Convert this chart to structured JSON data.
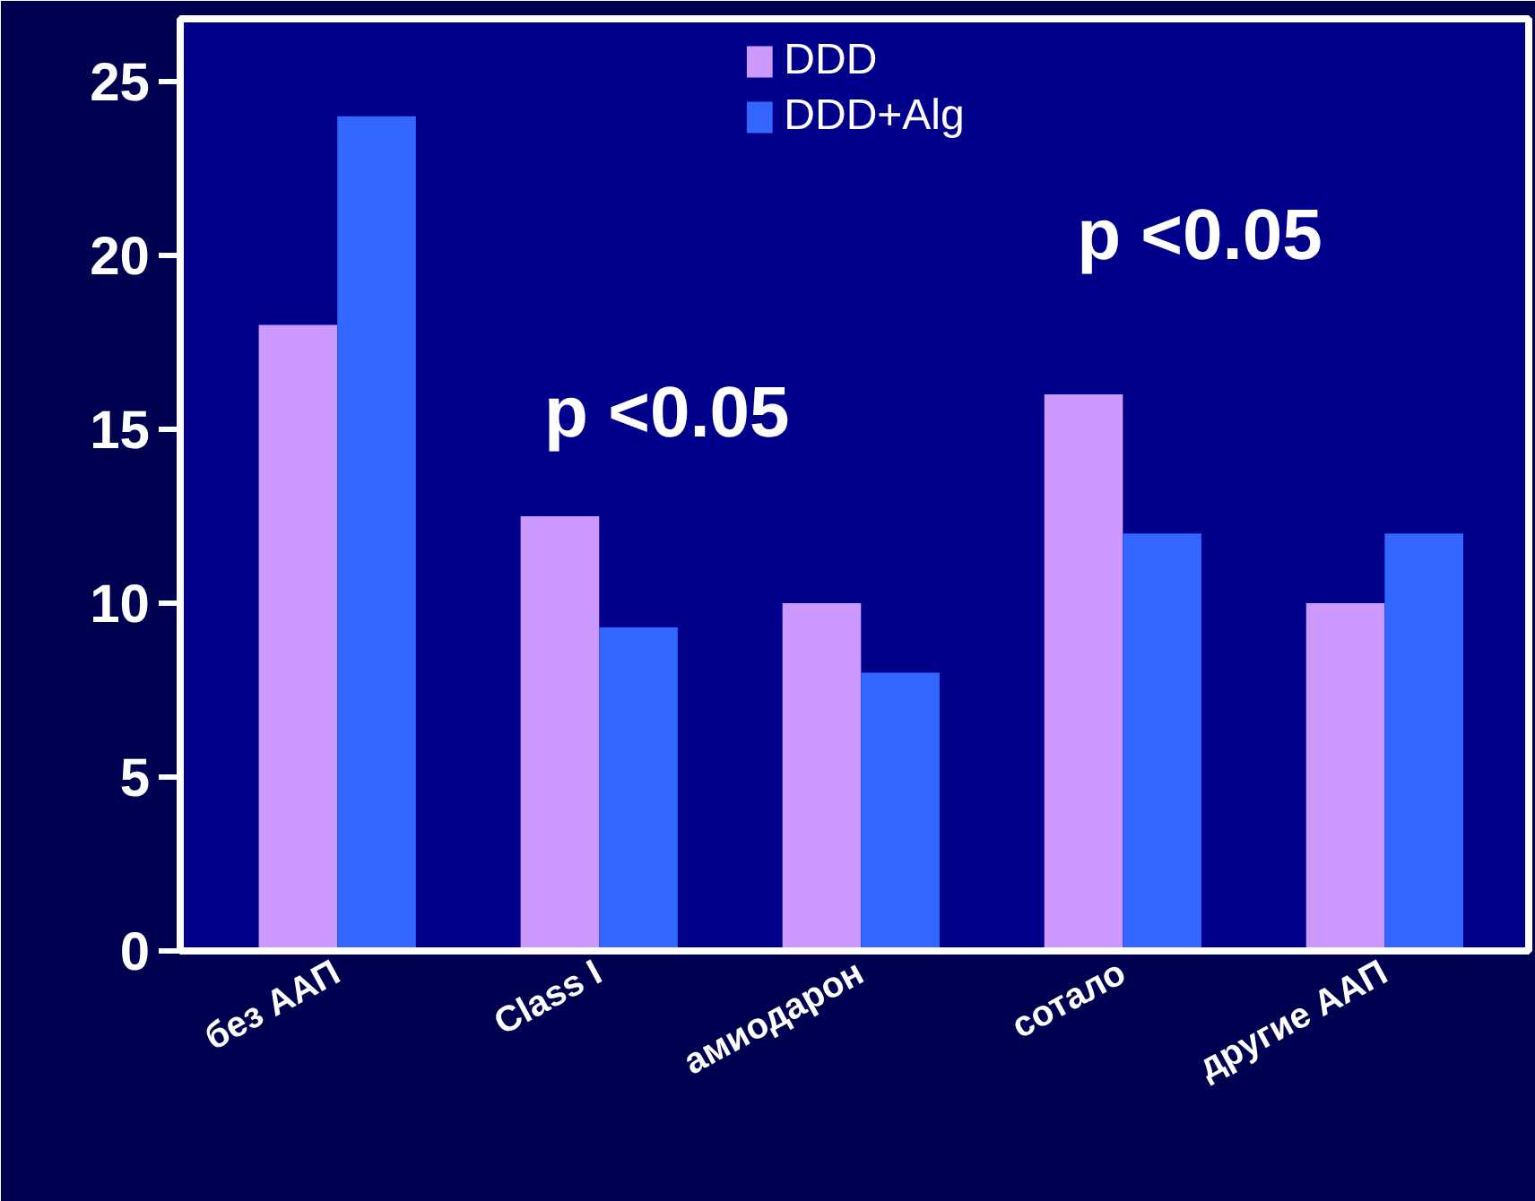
{
  "chart_data": {
    "type": "bar",
    "categories": [
      "без ААП",
      "Class I",
      "амиодарон",
      "сотало",
      "другие ААП"
    ],
    "series": [
      {
        "name": "DDD",
        "color": "#cc99ff",
        "values": [
          18,
          12.5,
          10,
          16,
          10
        ]
      },
      {
        "name": "DDD+Alg",
        "color": "#3366ff",
        "values": [
          24,
          9.3,
          8,
          12,
          12
        ]
      }
    ],
    "ylim": [
      0,
      26.8
    ],
    "yticks": [
      0,
      5,
      10,
      15,
      20,
      25
    ],
    "annotations": [
      "p <0.05",
      "p <0.05"
    ],
    "legend": "top",
    "grid": false
  }
}
